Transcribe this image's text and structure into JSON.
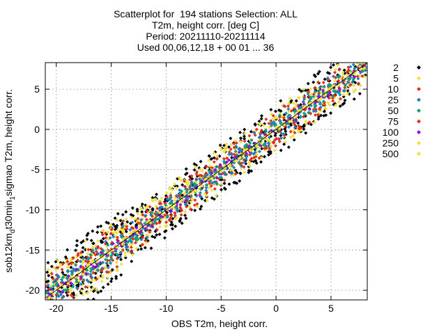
{
  "chart_data": {
    "type": "scatter",
    "title_lines": [
      "Scatterplot for  194 stations Selection: ALL",
      "T2m, height corr. [deg C]",
      "Period: 20211110-20211114",
      "Used 00,06,12,18 + 00 01 ... 36"
    ],
    "xlabel": "OBS T2m, height corr.",
    "ylabel_parts": [
      "sob12km",
      "d",
      "t30min",
      "1",
      "sigmao T2m, height corr."
    ],
    "xlim": [
      -21,
      8.3
    ],
    "ylim": [
      -21.2,
      8.3
    ],
    "xticks": [
      -20,
      -15,
      -10,
      -5,
      0,
      5
    ],
    "yticks": [
      -20,
      -15,
      -10,
      -5,
      0,
      5
    ],
    "grid": true,
    "diagonal_line": true,
    "legend_position": "right",
    "legend": [
      {
        "label": "2",
        "color": "#000000"
      },
      {
        "label": "5",
        "color": "#f0e040"
      },
      {
        "label": "10",
        "color": "#e03020"
      },
      {
        "label": "25",
        "color": "#1a80c0"
      },
      {
        "label": "50",
        "color": "#10a080"
      },
      {
        "label": "75",
        "color": "#e03020"
      },
      {
        "label": "100",
        "color": "#9010d0"
      },
      {
        "label": "250",
        "color": "#f0e040"
      },
      {
        "label": "500",
        "color": "#f0e040"
      }
    ],
    "density_bands": [
      {
        "level": "2",
        "color": "#000000",
        "half_width": 3.2
      },
      {
        "level": "5",
        "color": "#f0e040",
        "half_width": 2.6
      },
      {
        "level": "10",
        "color": "#e03020",
        "half_width": 2.0
      },
      {
        "level": "25",
        "color": "#1a80c0",
        "half_width": 1.4
      },
      {
        "level": "50",
        "color": "#10a080",
        "half_width": 0.9
      },
      {
        "level": "100",
        "color": "#9010d0",
        "half_width": 0.5
      },
      {
        "level": "500",
        "color": "#f0e040",
        "half_width": 0.15
      }
    ]
  }
}
